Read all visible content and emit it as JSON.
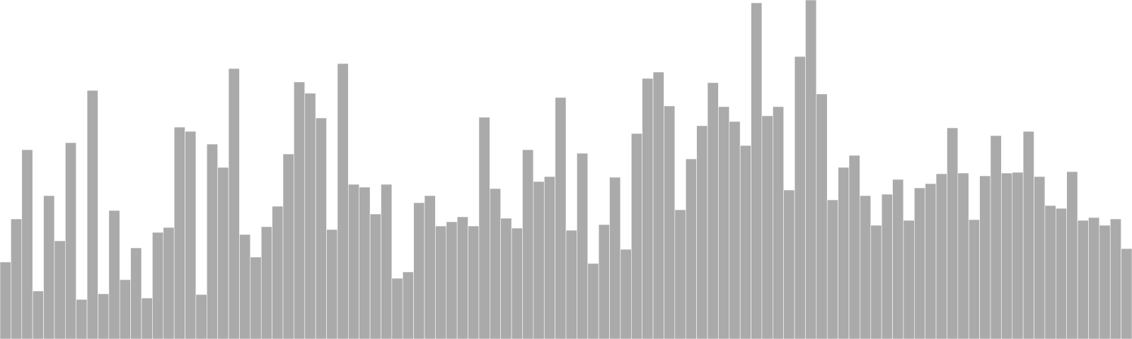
{
  "chart_data": {
    "type": "bar",
    "values": [
      109,
      170,
      268,
      68,
      203,
      139,
      278,
      56,
      352,
      64,
      182,
      84,
      129,
      58,
      151,
      158,
      300,
      294,
      63,
      276,
      243,
      383,
      148,
      116,
      159,
      188,
      262,
      364,
      348,
      313,
      155,
      390,
      219,
      215,
      177,
      219,
      86,
      95,
      193,
      203,
      160,
      166,
      173,
      160,
      314,
      213,
      171,
      157,
      268,
      223,
      230,
      342,
      154,
      263,
      107,
      162,
      229,
      127,
      291,
      369,
      378,
      330,
      183,
      255,
      302,
      363,
      329,
      308,
      274,
      476,
      316,
      329,
      211,
      400,
      480,
      347,
      197,
      243,
      260,
      203,
      161,
      205,
      226,
      168,
      214,
      220,
      234,
      299,
      235,
      169,
      231,
      288,
      235,
      236,
      294,
      230,
      189,
      185,
      237,
      168,
      172,
      161,
      170,
      128
    ],
    "ylim": [
      0,
      480
    ],
    "bar_color": "#aaaaaa",
    "grid": false
  }
}
